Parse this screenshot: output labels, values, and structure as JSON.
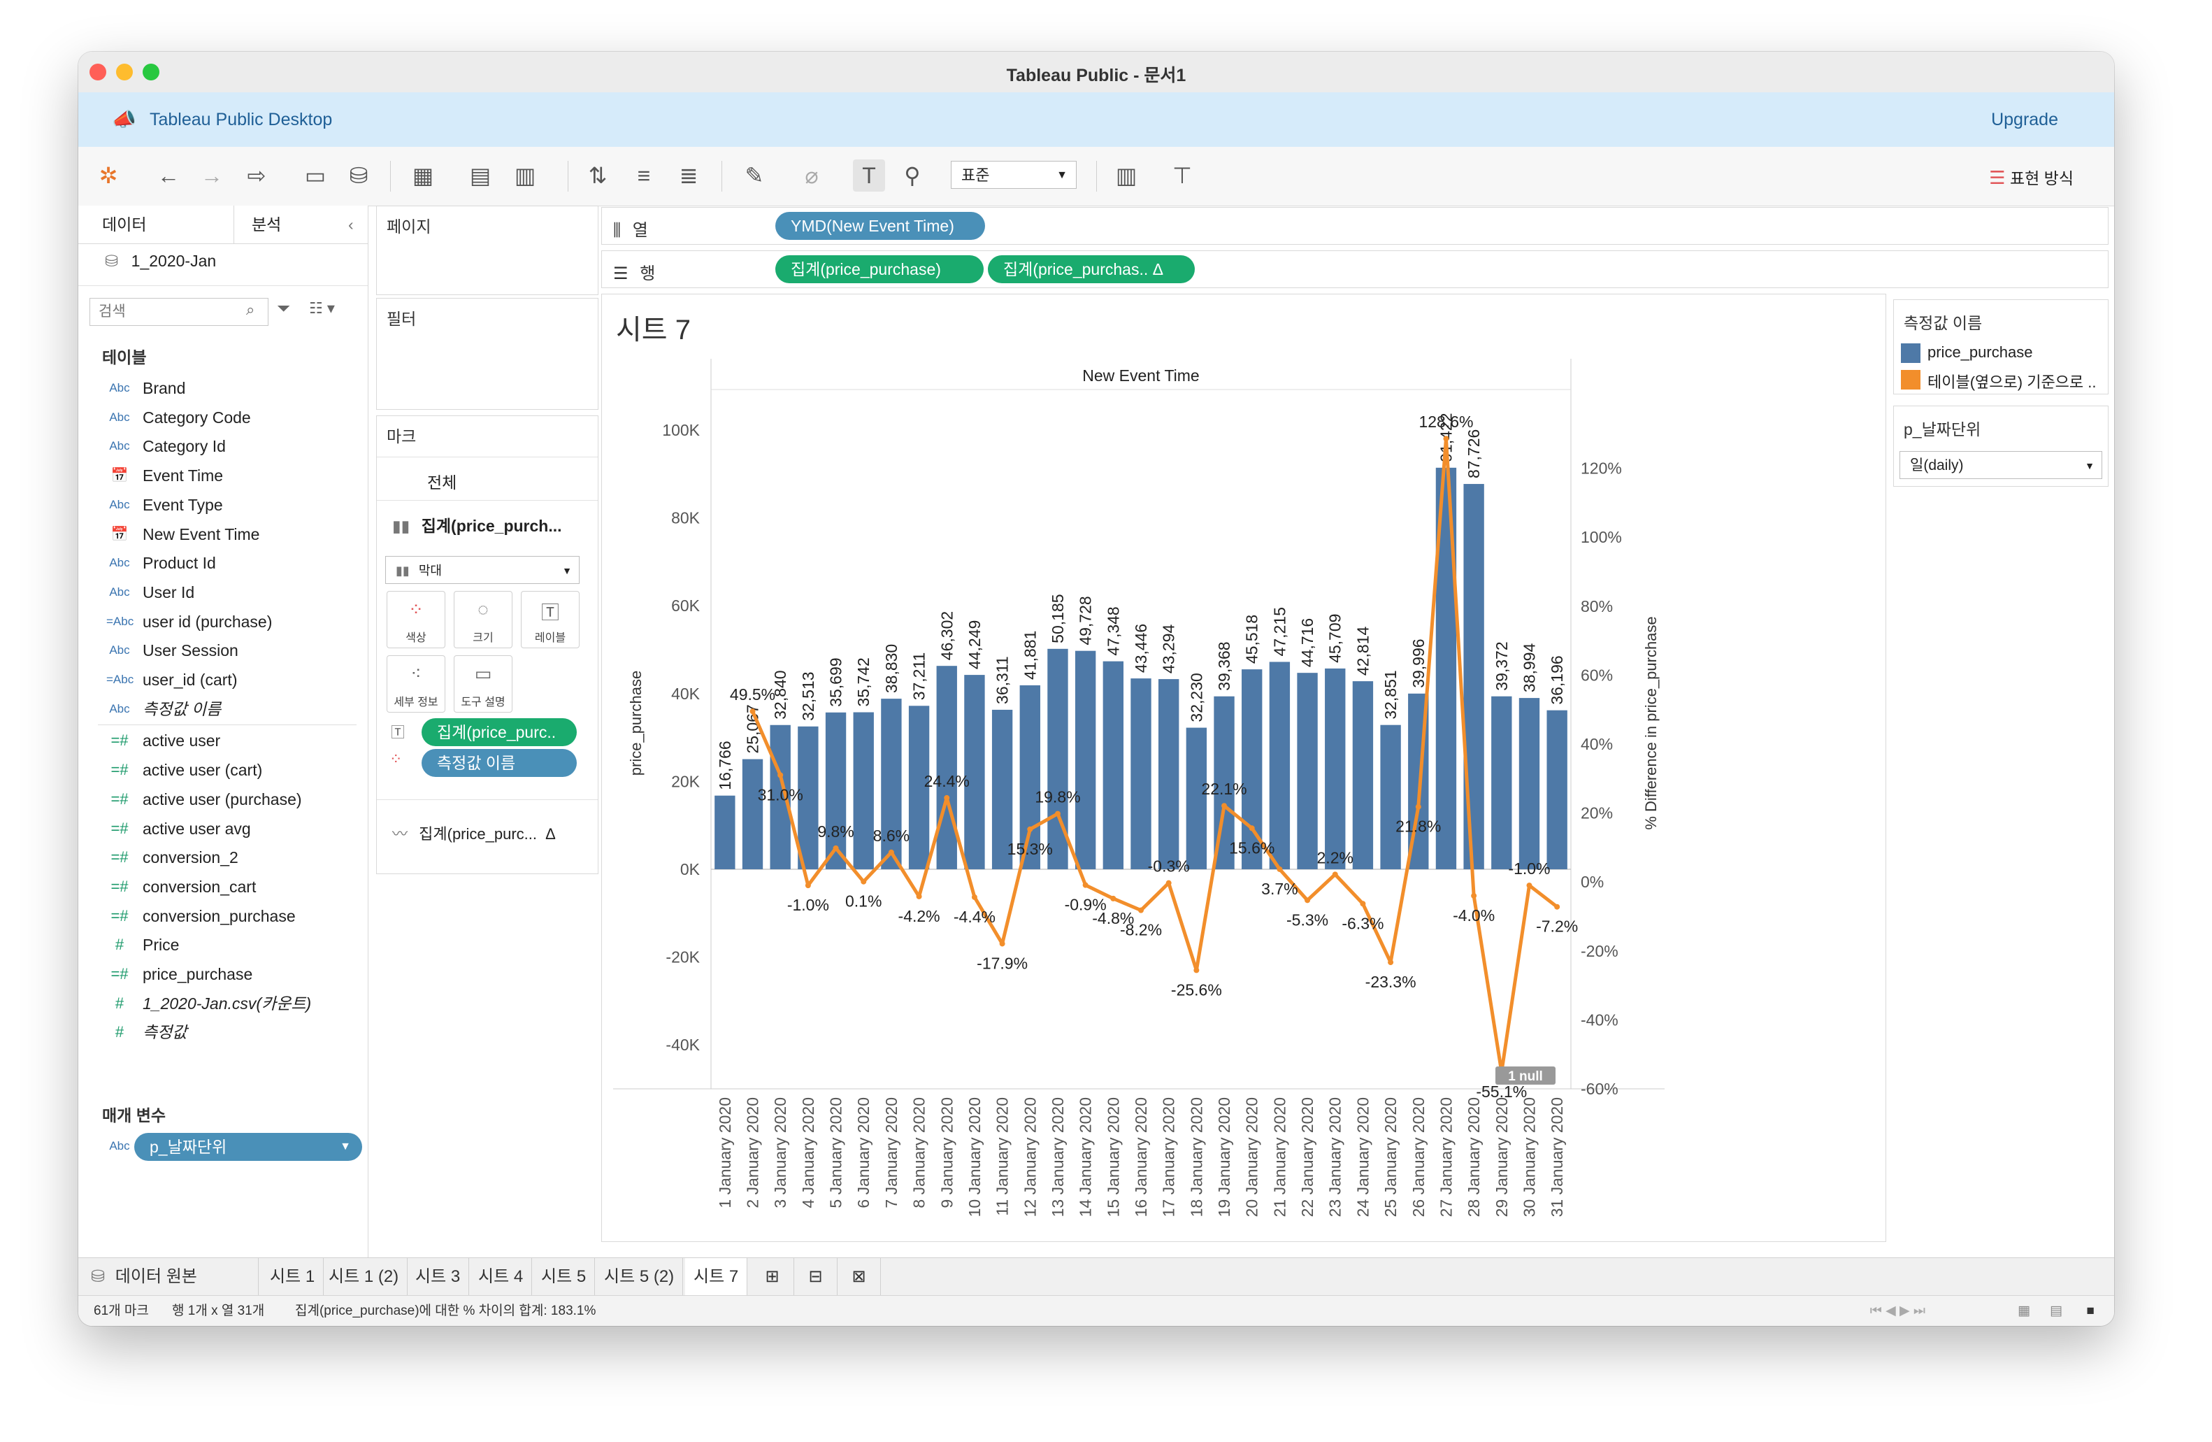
{
  "window": {
    "title": "Tableau Public - 문서1"
  },
  "banner": {
    "product": "Tableau Public Desktop",
    "upgrade": "Upgrade"
  },
  "toolbar": {
    "display_select": "표준",
    "show_me": "표현 방식"
  },
  "side_panel": {
    "tab_data": "데이터",
    "tab_analysis": "분석",
    "datasource": "1_2020-Jan",
    "search_placeholder": "검색",
    "tables_header": "테이블",
    "fields": [
      {
        "type": "Abc",
        "name": "Brand"
      },
      {
        "type": "Abc",
        "name": "Category Code"
      },
      {
        "type": "Abc",
        "name": "Category Id"
      },
      {
        "type": "date",
        "name": "Event Time"
      },
      {
        "type": "Abc",
        "name": "Event Type"
      },
      {
        "type": "date",
        "name": "New Event Time"
      },
      {
        "type": "Abc",
        "name": "Product Id"
      },
      {
        "type": "Abc",
        "name": "User Id"
      },
      {
        "type": "=Abc",
        "name": "user id (purchase)"
      },
      {
        "type": "Abc",
        "name": "User Session"
      },
      {
        "type": "=Abc",
        "name": "user_id (cart)"
      },
      {
        "type": "Abc",
        "name": "측정값 이름"
      },
      {
        "type": "=#",
        "name": "active user"
      },
      {
        "type": "=#",
        "name": "active user (cart)"
      },
      {
        "type": "=#",
        "name": "active user (purchase)"
      },
      {
        "type": "=#",
        "name": "active user avg"
      },
      {
        "type": "=#",
        "name": "conversion_2"
      },
      {
        "type": "=#",
        "name": "conversion_cart"
      },
      {
        "type": "=#",
        "name": "conversion_purchase"
      },
      {
        "type": "#",
        "name": "Price"
      },
      {
        "type": "=#",
        "name": "price_purchase"
      },
      {
        "type": "#",
        "name": "1_2020-Jan.csv(카운트)"
      },
      {
        "type": "#",
        "name": "측정값"
      }
    ],
    "params_header": "매개 변수",
    "param": {
      "type": "Abc",
      "name": "p_날짜단위"
    }
  },
  "pages_label": "페이지",
  "filters_label": "필터",
  "marks": {
    "label": "마크",
    "all": "전체",
    "bar_measure": "집계(price_purch...",
    "mark_type": "막대",
    "buttons": [
      "색상",
      "크기",
      "레이블",
      "세부 정보",
      "도구 설명"
    ],
    "pill_label": "집계(price_purc..",
    "pill_color": "측정값 이름",
    "line_measure": "집계(price_purc...",
    "delta": "Δ"
  },
  "shelves": {
    "columns_label": "열",
    "rows_label": "행",
    "columns_pill": "YMD(New Event Time)",
    "rows_pill_1": "집계(price_purchase)",
    "rows_pill_2": "집계(price_purchas..  Δ"
  },
  "legend": {
    "title": "측정값 이름",
    "items": [
      {
        "name": "price_purchase",
        "color": "#4e79a7"
      },
      {
        "name": "테이블(옆으로) 기준으로 ..",
        "color": "#f28e2b"
      }
    ]
  },
  "parameter_card": {
    "title": "p_날짜단위",
    "value": "일(daily)"
  },
  "sheet_tabs": {
    "datasource": "데이터 원본",
    "tabs": [
      "시트 1",
      "시트 1 (2)",
      "시트 3",
      "시트 4",
      "시트 5",
      "시트 5 (2)",
      "시트 7"
    ],
    "active": "시트 7"
  },
  "status": {
    "marks": "61개 마크",
    "dims": "행 1개 x 열 31개",
    "sum": "집계(price_purchase)에 대한 % 차이의 합계: 183.1%"
  },
  "chart_data": {
    "type": "bar",
    "title": "시트 7",
    "column_header": "New Event Time",
    "ylabel": "price_purchase",
    "y2label": "% Difference in price_purchase",
    "ylim": [
      -50000,
      107000
    ],
    "y_ticks": [
      "100K",
      "80K",
      "60K",
      "40K",
      "20K",
      "0K",
      "-20K",
      "-40K"
    ],
    "y_tick_values": [
      100000,
      80000,
      60000,
      40000,
      20000,
      0,
      -20000,
      -40000
    ],
    "y2lim": [
      -60,
      140
    ],
    "y2_ticks": [
      "120%",
      "100%",
      "80%",
      "60%",
      "40%",
      "20%",
      "0%",
      "-20%",
      "-40%",
      "-60%"
    ],
    "y2_tick_values": [
      120,
      100,
      80,
      60,
      40,
      20,
      0,
      -20,
      -40,
      -60
    ],
    "categories": [
      "1 January 2020",
      "2 January 2020",
      "3 January 2020",
      "4 January 2020",
      "5 January 2020",
      "6 January 2020",
      "7 January 2020",
      "8 January 2020",
      "9 January 2020",
      "10 January 2020",
      "11 January 2020",
      "12 January 2020",
      "13 January 2020",
      "14 January 2020",
      "15 January 2020",
      "16 January 2020",
      "17 January 2020",
      "18 January 2020",
      "19 January 2020",
      "20 January 2020",
      "21 January 2020",
      "22 January 2020",
      "23 January 2020",
      "24 January 2020",
      "25 January 2020",
      "26 January 2020",
      "27 January 2020",
      "28 January 2020",
      "29 January 2020",
      "30 January 2020",
      "31 January 2020"
    ],
    "series": [
      {
        "name": "price_purchase",
        "color": "#4e79a7",
        "values": [
          16766,
          25067,
          32840,
          32513,
          35699,
          35742,
          38830,
          37211,
          46302,
          44249,
          36311,
          41881,
          50185,
          49728,
          47348,
          43446,
          43294,
          32230,
          39368,
          45518,
          47215,
          44716,
          45709,
          42814,
          32851,
          39996,
          91422,
          87726,
          39372,
          38994,
          36196
        ],
        "labels": [
          "16,766",
          "25,067",
          "32,840",
          "32,513",
          "35,699",
          "35,742",
          "38,830",
          "37,211",
          "46,302",
          "44,249",
          "36,311",
          "41,881",
          "50,185",
          "49,728",
          "47,348",
          "43,446",
          "43,294",
          "32,230",
          "39,368",
          "45,518",
          "47,215",
          "44,716",
          "45,709",
          "42,814",
          "32,851",
          "39,996",
          "91,422",
          "87,726",
          "39,372",
          "38,994",
          "36,196"
        ]
      },
      {
        "name": "테이블(옆으로) 기준으로 ..",
        "color": "#f28e2b",
        "values": [
          null,
          49.5,
          31.0,
          -1.0,
          9.8,
          0.1,
          8.6,
          -4.2,
          24.4,
          -4.4,
          -17.9,
          15.3,
          19.8,
          -0.9,
          -4.8,
          -8.2,
          -0.3,
          -25.6,
          22.1,
          15.6,
          3.7,
          -5.3,
          2.2,
          -6.3,
          -23.3,
          21.8,
          128.6,
          -4.0,
          -55.1,
          -1.0,
          -7.2
        ],
        "labels": [
          "",
          "49.5%",
          "31.0%",
          "-1.0%",
          "9.8%",
          "0.1%",
          "8.6%",
          "-4.2%",
          "24.4%",
          "-4.4%",
          "-17.9%",
          "15.3%",
          "19.8%",
          "-0.9%",
          "-4.8%",
          "-8.2%",
          "-0.3%",
          "-25.6%",
          "22.1%",
          "15.6%",
          "3.7%",
          "-5.3%",
          "2.2%",
          "-6.3%",
          "-23.3%",
          "21.8%",
          "128.6%",
          "-4.0%",
          "-55.1%",
          "-1.0%",
          "-7.2%"
        ]
      }
    ],
    "null_indicator": "1 null"
  }
}
